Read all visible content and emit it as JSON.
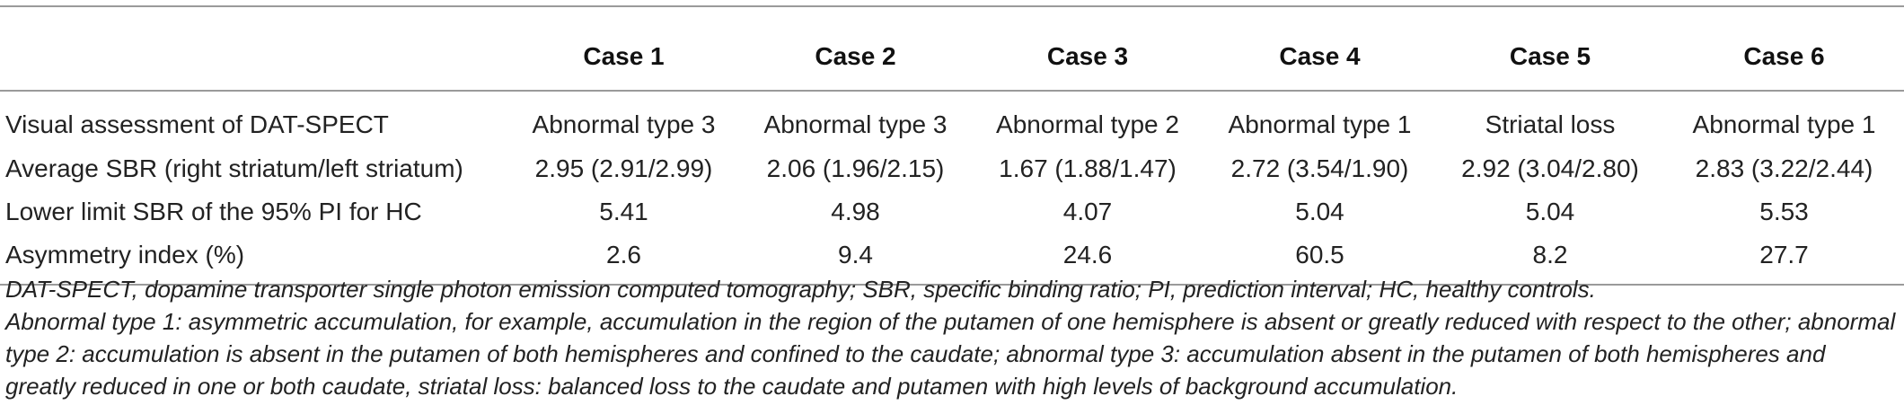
{
  "table": {
    "headers": [
      "",
      "Case 1",
      "Case 2",
      "Case 3",
      "Case 4",
      "Case 5",
      "Case 6"
    ],
    "rows": [
      {
        "label": "Visual assessment of DAT-SPECT",
        "values": [
          "Abnormal type 3",
          "Abnormal type 3",
          "Abnormal type 2",
          "Abnormal type 1",
          "Striatal loss",
          "Abnormal type 1"
        ]
      },
      {
        "label": "Average SBR (right striatum/left striatum)",
        "values": [
          "2.95 (2.91/2.99)",
          "2.06 (1.96/2.15)",
          "1.67 (1.88/1.47)",
          "2.72 (3.54/1.90)",
          "2.92 (3.04/2.80)",
          "2.83 (3.22/2.44)"
        ]
      },
      {
        "label": "Lower limit SBR of the 95% PI for HC",
        "values": [
          "5.41",
          "4.98",
          "4.07",
          "5.04",
          "5.04",
          "5.53"
        ]
      },
      {
        "label": "Asymmetry index (%)",
        "values": [
          "2.6",
          "9.4",
          "24.6",
          "60.5",
          "8.2",
          "27.7"
        ]
      }
    ]
  },
  "footnotes": {
    "abbreviations": "DAT-SPECT, dopamine transporter single photon emission computed tomography; SBR, specific binding ratio; PI, prediction interval; HC, healthy controls.",
    "definitions": "Abnormal type 1: asymmetric accumulation, for example, accumulation in the region of the putamen of one hemisphere is absent or greatly reduced with respect to the other; abnormal type 2: accumulation is absent in the putamen of both hemispheres and confined to the caudate; abnormal type 3: accumulation absent in the putamen of both hemispheres and greatly reduced in one or both caudate, striatal loss: balanced loss to the caudate and putamen with high levels of background accumulation."
  }
}
